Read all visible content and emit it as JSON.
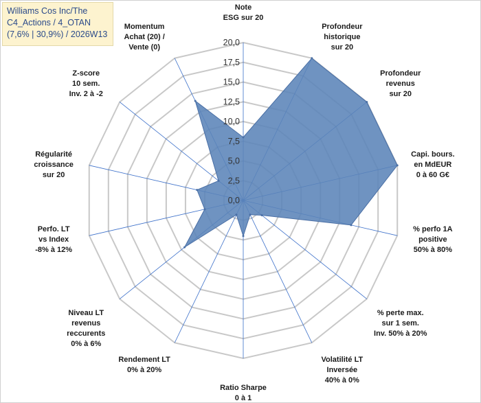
{
  "title": {
    "lines": [
      "Williams Cos Inc/The",
      "C4_Actions / 4_OTAN",
      "(7,6% | 30,9%) / 2026W13"
    ]
  },
  "colors": {
    "fill": "#5b84b8",
    "stroke": "#4a6fa5",
    "grid": "#c8c8c8",
    "spoke": "#3b6fc9",
    "title_bg": "#fdf3cf",
    "title_text": "#2a4a8a"
  },
  "chart_data": {
    "type": "radar",
    "rmin": 0,
    "rmax": 20,
    "tick_step": 2.5,
    "tick_labels": [
      "0,0",
      "2,5",
      "5,0",
      "7,5",
      "10,0",
      "12,5",
      "15,0",
      "17,5",
      "20,0"
    ],
    "grid": true,
    "categories": [
      {
        "label": [
          "Note",
          "ESG sur 20"
        ],
        "value": 8
      },
      {
        "label": [
          "Profondeur",
          "historique",
          "sur 20"
        ],
        "value": 20
      },
      {
        "label": [
          "Profondeur",
          "revenus",
          "sur 20"
        ],
        "value": 20
      },
      {
        "label": [
          "Capi. bours.",
          "en MdEUR",
          "0 à 60 G€"
        ],
        "value": 20
      },
      {
        "label": [
          "% perfo 1A",
          "positive",
          "50% à 80%"
        ],
        "value": 14
      },
      {
        "label": [
          "% perte max.",
          "sur 1 sem.",
          "Inv. 50% à 20%"
        ],
        "value": 3
      },
      {
        "label": [
          "Volatilité LT",
          "Inversée",
          "40% à 0%"
        ],
        "value": 2
      },
      {
        "label": [
          "Ratio Sharpe",
          "0 à 1"
        ],
        "value": 4.5
      },
      {
        "label": [
          "Rendement LT",
          "0% à 20%"
        ],
        "value": 2
      },
      {
        "label": [
          "Niveau LT",
          "revenus",
          "reccurents",
          "0% à 6%"
        ],
        "value": 9.5
      },
      {
        "label": [
          "Perfo. LT",
          "vs Index",
          "-8% à 12%"
        ],
        "value": 5
      },
      {
        "label": [
          "Régularité",
          "croissance",
          "sur 20"
        ],
        "value": 6
      },
      {
        "label": [
          "Z-score",
          "10 sem.",
          "Inv. 2 à -2"
        ],
        "value": 4
      },
      {
        "label": [
          "Momentum",
          "Achat (20) /",
          "Vente (0)"
        ],
        "value": 14
      }
    ]
  }
}
